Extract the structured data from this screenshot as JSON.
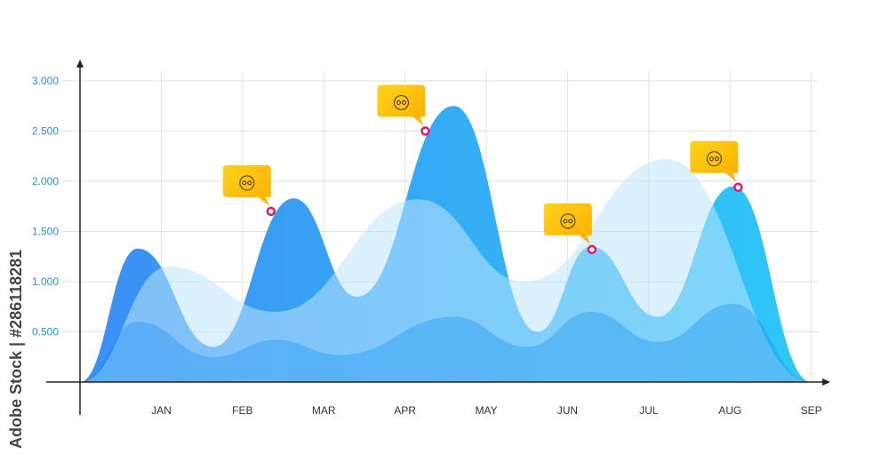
{
  "watermark": "Adobe Stock | #286118281",
  "chart_data": {
    "type": "area",
    "title": "",
    "xlabel": "",
    "ylabel": "",
    "categories": [
      "JAN",
      "FEB",
      "MAR",
      "APR",
      "MAY",
      "JUN",
      "JUL",
      "AUG",
      "SEP"
    ],
    "y_ticks": [
      "0.500",
      "1.000",
      "1.500",
      "2.000",
      "2.500",
      "3.000"
    ],
    "y_tick_values": [
      0.5,
      1,
      1.5,
      2,
      2.5,
      3
    ],
    "xlim": [
      0,
      9
    ],
    "ylim": [
      0,
      3
    ],
    "grid": true,
    "series": [
      {
        "color": "#3b8ff4",
        "color2": "#2fc8f6",
        "points": [
          [
            0,
            0
          ],
          [
            0.71,
            1.33
          ],
          [
            1.64,
            0.35
          ],
          [
            2.63,
            1.83
          ],
          [
            3.41,
            0.85
          ],
          [
            4.6,
            2.75
          ],
          [
            5.63,
            0.5
          ],
          [
            6.29,
            1.35
          ],
          [
            7.11,
            0.65
          ],
          [
            8.04,
            1.95
          ],
          [
            9,
            0
          ]
        ]
      },
      {
        "color": "#bfe6fb",
        "points": [
          [
            0,
            0
          ],
          [
            1.09,
            1.15
          ],
          [
            2.41,
            0.7
          ],
          [
            4.16,
            1.82
          ],
          [
            5.47,
            1.0
          ],
          [
            7.22,
            2.22
          ],
          [
            9,
            0
          ]
        ]
      },
      {
        "color": "#1a8af0",
        "points": [
          [
            0,
            0
          ],
          [
            0.71,
            0.6
          ],
          [
            1.64,
            0.25
          ],
          [
            2.41,
            0.42
          ],
          [
            3.2,
            0.27
          ],
          [
            4.6,
            0.65
          ],
          [
            5.5,
            0.35
          ],
          [
            6.29,
            0.7
          ],
          [
            7.11,
            0.4
          ],
          [
            8.04,
            0.78
          ],
          [
            9,
            0
          ]
        ]
      }
    ],
    "markers": [
      {
        "x": 2.35,
        "y": 1.7,
        "icon": "rating-stars-chat-icon"
      },
      {
        "x": 4.25,
        "y": 2.5,
        "icon": "team-growth-icon"
      },
      {
        "x": 6.3,
        "y": 1.32,
        "icon": "clapping-hands-icon"
      },
      {
        "x": 8.1,
        "y": 1.94,
        "icon": "bitcoin-idea-icon"
      }
    ],
    "marker_color": "#e0196b",
    "callout_color": "#ffc107"
  }
}
